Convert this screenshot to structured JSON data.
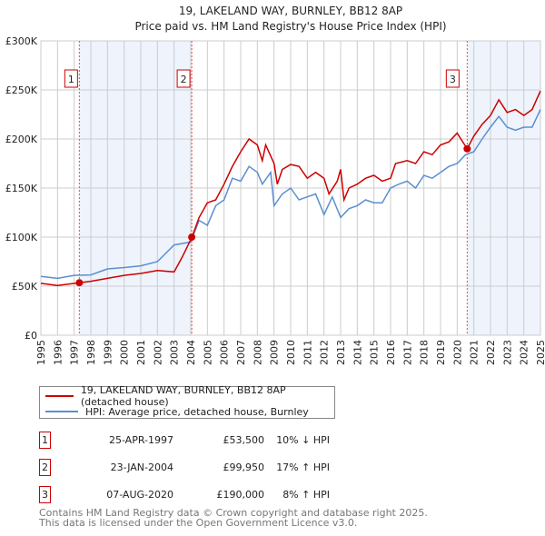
{
  "chart_data": {
    "type": "line",
    "title": "19, LAKELAND WAY, BURNLEY, BB12 8AP",
    "subtitle": "Price paid vs. HM Land Registry's House Price Index (HPI)",
    "xlim": [
      1995,
      2025
    ],
    "ylim": [
      0,
      300000
    ],
    "y_ticks": [
      {
        "v": 0,
        "label": "£0"
      },
      {
        "v": 50000,
        "label": "£50K"
      },
      {
        "v": 100000,
        "label": "£100K"
      },
      {
        "v": 150000,
        "label": "£150K"
      },
      {
        "v": 200000,
        "label": "£200K"
      },
      {
        "v": 250000,
        "label": "£250K"
      },
      {
        "v": 300000,
        "label": "£300K"
      }
    ],
    "x_ticks": [
      "1995",
      "1996",
      "1997",
      "1998",
      "1999",
      "2000",
      "2001",
      "2002",
      "2003",
      "2004",
      "2005",
      "2006",
      "2007",
      "2008",
      "2009",
      "2010",
      "2011",
      "2012",
      "2013",
      "2014",
      "2015",
      "2016",
      "2017",
      "2018",
      "2019",
      "2020",
      "2021",
      "2022",
      "2023",
      "2024",
      "2025"
    ],
    "grid": true,
    "legend_placement": "below",
    "series": [
      {
        "name": "19, LAKELAND WAY, BURNLEY, BB12 8AP (detached house)",
        "color": "#cc0000",
        "x": [
          1995,
          1996,
          1997.3,
          1998,
          1999,
          2000,
          2001,
          2002,
          2003,
          2003.5,
          2004.07,
          2004.5,
          2005,
          2005.5,
          2006,
          2006.5,
          2007,
          2007.5,
          2008,
          2008.3,
          2008.5,
          2009,
          2009.2,
          2009.5,
          2010,
          2010.5,
          2011,
          2011.5,
          2012,
          2012.3,
          2012.8,
          2013,
          2013.2,
          2013.5,
          2014,
          2014.5,
          2015,
          2015.5,
          2016,
          2016.3,
          2017,
          2017.5,
          2018,
          2018.5,
          2019,
          2019.5,
          2020,
          2020.6,
          2021,
          2021.5,
          2022,
          2022.5,
          2023,
          2023.5,
          2024,
          2024.5,
          2025
        ],
        "y": [
          52900,
          50700,
          53500,
          55000,
          58000,
          61000,
          63000,
          66000,
          64500,
          80000,
          99950,
          120000,
          135000,
          138000,
          154000,
          172000,
          187000,
          200000,
          194000,
          178000,
          194000,
          175000,
          154000,
          169000,
          174000,
          172000,
          160000,
          166000,
          160000,
          144000,
          157000,
          169000,
          138000,
          150000,
          154000,
          160000,
          163000,
          157000,
          160000,
          175000,
          178000,
          175000,
          187000,
          184000,
          194000,
          197000,
          206000,
          190000,
          203000,
          215000,
          224000,
          240000,
          227000,
          230000,
          224000,
          230000,
          249000
        ]
      },
      {
        "name": "HPI: Average price, detached house, Burnley",
        "color": "#5b8fd0",
        "x": [
          1995,
          1996,
          1997,
          1998,
          1999,
          2000,
          2001,
          2002,
          2003,
          2004,
          2004.5,
          2005,
          2005.5,
          2006,
          2006.5,
          2007,
          2007.5,
          2008,
          2008.3,
          2008.8,
          2009,
          2009.5,
          2010,
          2010.5,
          2011,
          2011.5,
          2012,
          2012.5,
          2013,
          2013.5,
          2014,
          2014.5,
          2015,
          2015.5,
          2016,
          2016.5,
          2017,
          2017.5,
          2018,
          2018.5,
          2019,
          2019.5,
          2020,
          2020.5,
          2021,
          2021.5,
          2022,
          2022.5,
          2023,
          2023.5,
          2024,
          2024.5,
          2025
        ],
        "y": [
          60000,
          58000,
          61000,
          61500,
          67600,
          69000,
          70700,
          75000,
          92000,
          95000,
          117000,
          112000,
          132000,
          138000,
          160000,
          157000,
          172000,
          166000,
          154000,
          166000,
          132000,
          144000,
          150000,
          138000,
          141000,
          144000,
          123000,
          141000,
          120000,
          129000,
          132000,
          138000,
          135000,
          135000,
          150000,
          154000,
          157000,
          150000,
          163000,
          160000,
          166000,
          172000,
          175000,
          184000,
          187000,
          200000,
          212000,
          223000,
          212000,
          209000,
          212000,
          212000,
          230000
        ]
      }
    ],
    "sales": [
      {
        "n": "1",
        "x": 1997.31,
        "y": 53500
      },
      {
        "n": "2",
        "x": 2004.06,
        "y": 99950
      },
      {
        "n": "3",
        "x": 2020.6,
        "y": 190000
      }
    ],
    "shaded_ranges": [
      [
        1997.31,
        2004.06
      ],
      [
        2020.6,
        2025
      ]
    ]
  },
  "legend": {
    "property": "19, LAKELAND WAY, BURNLEY, BB12 8AP (detached house)",
    "hpi": "HPI: Average price, detached house, Burnley"
  },
  "transactions": [
    {
      "n": "1",
      "date": "25-APR-1997",
      "price": "£53,500",
      "hpi": "10% ↓ HPI"
    },
    {
      "n": "2",
      "date": "23-JAN-2004",
      "price": "£99,950",
      "hpi": "17% ↑ HPI"
    },
    {
      "n": "3",
      "date": "07-AUG-2020",
      "price": "£190,000",
      "hpi": "8% ↑ HPI"
    }
  ],
  "footer": {
    "line1": "Contains HM Land Registry data © Crown copyright and database right 2025.",
    "line2": "This data is licensed under the Open Government Licence v3.0."
  }
}
